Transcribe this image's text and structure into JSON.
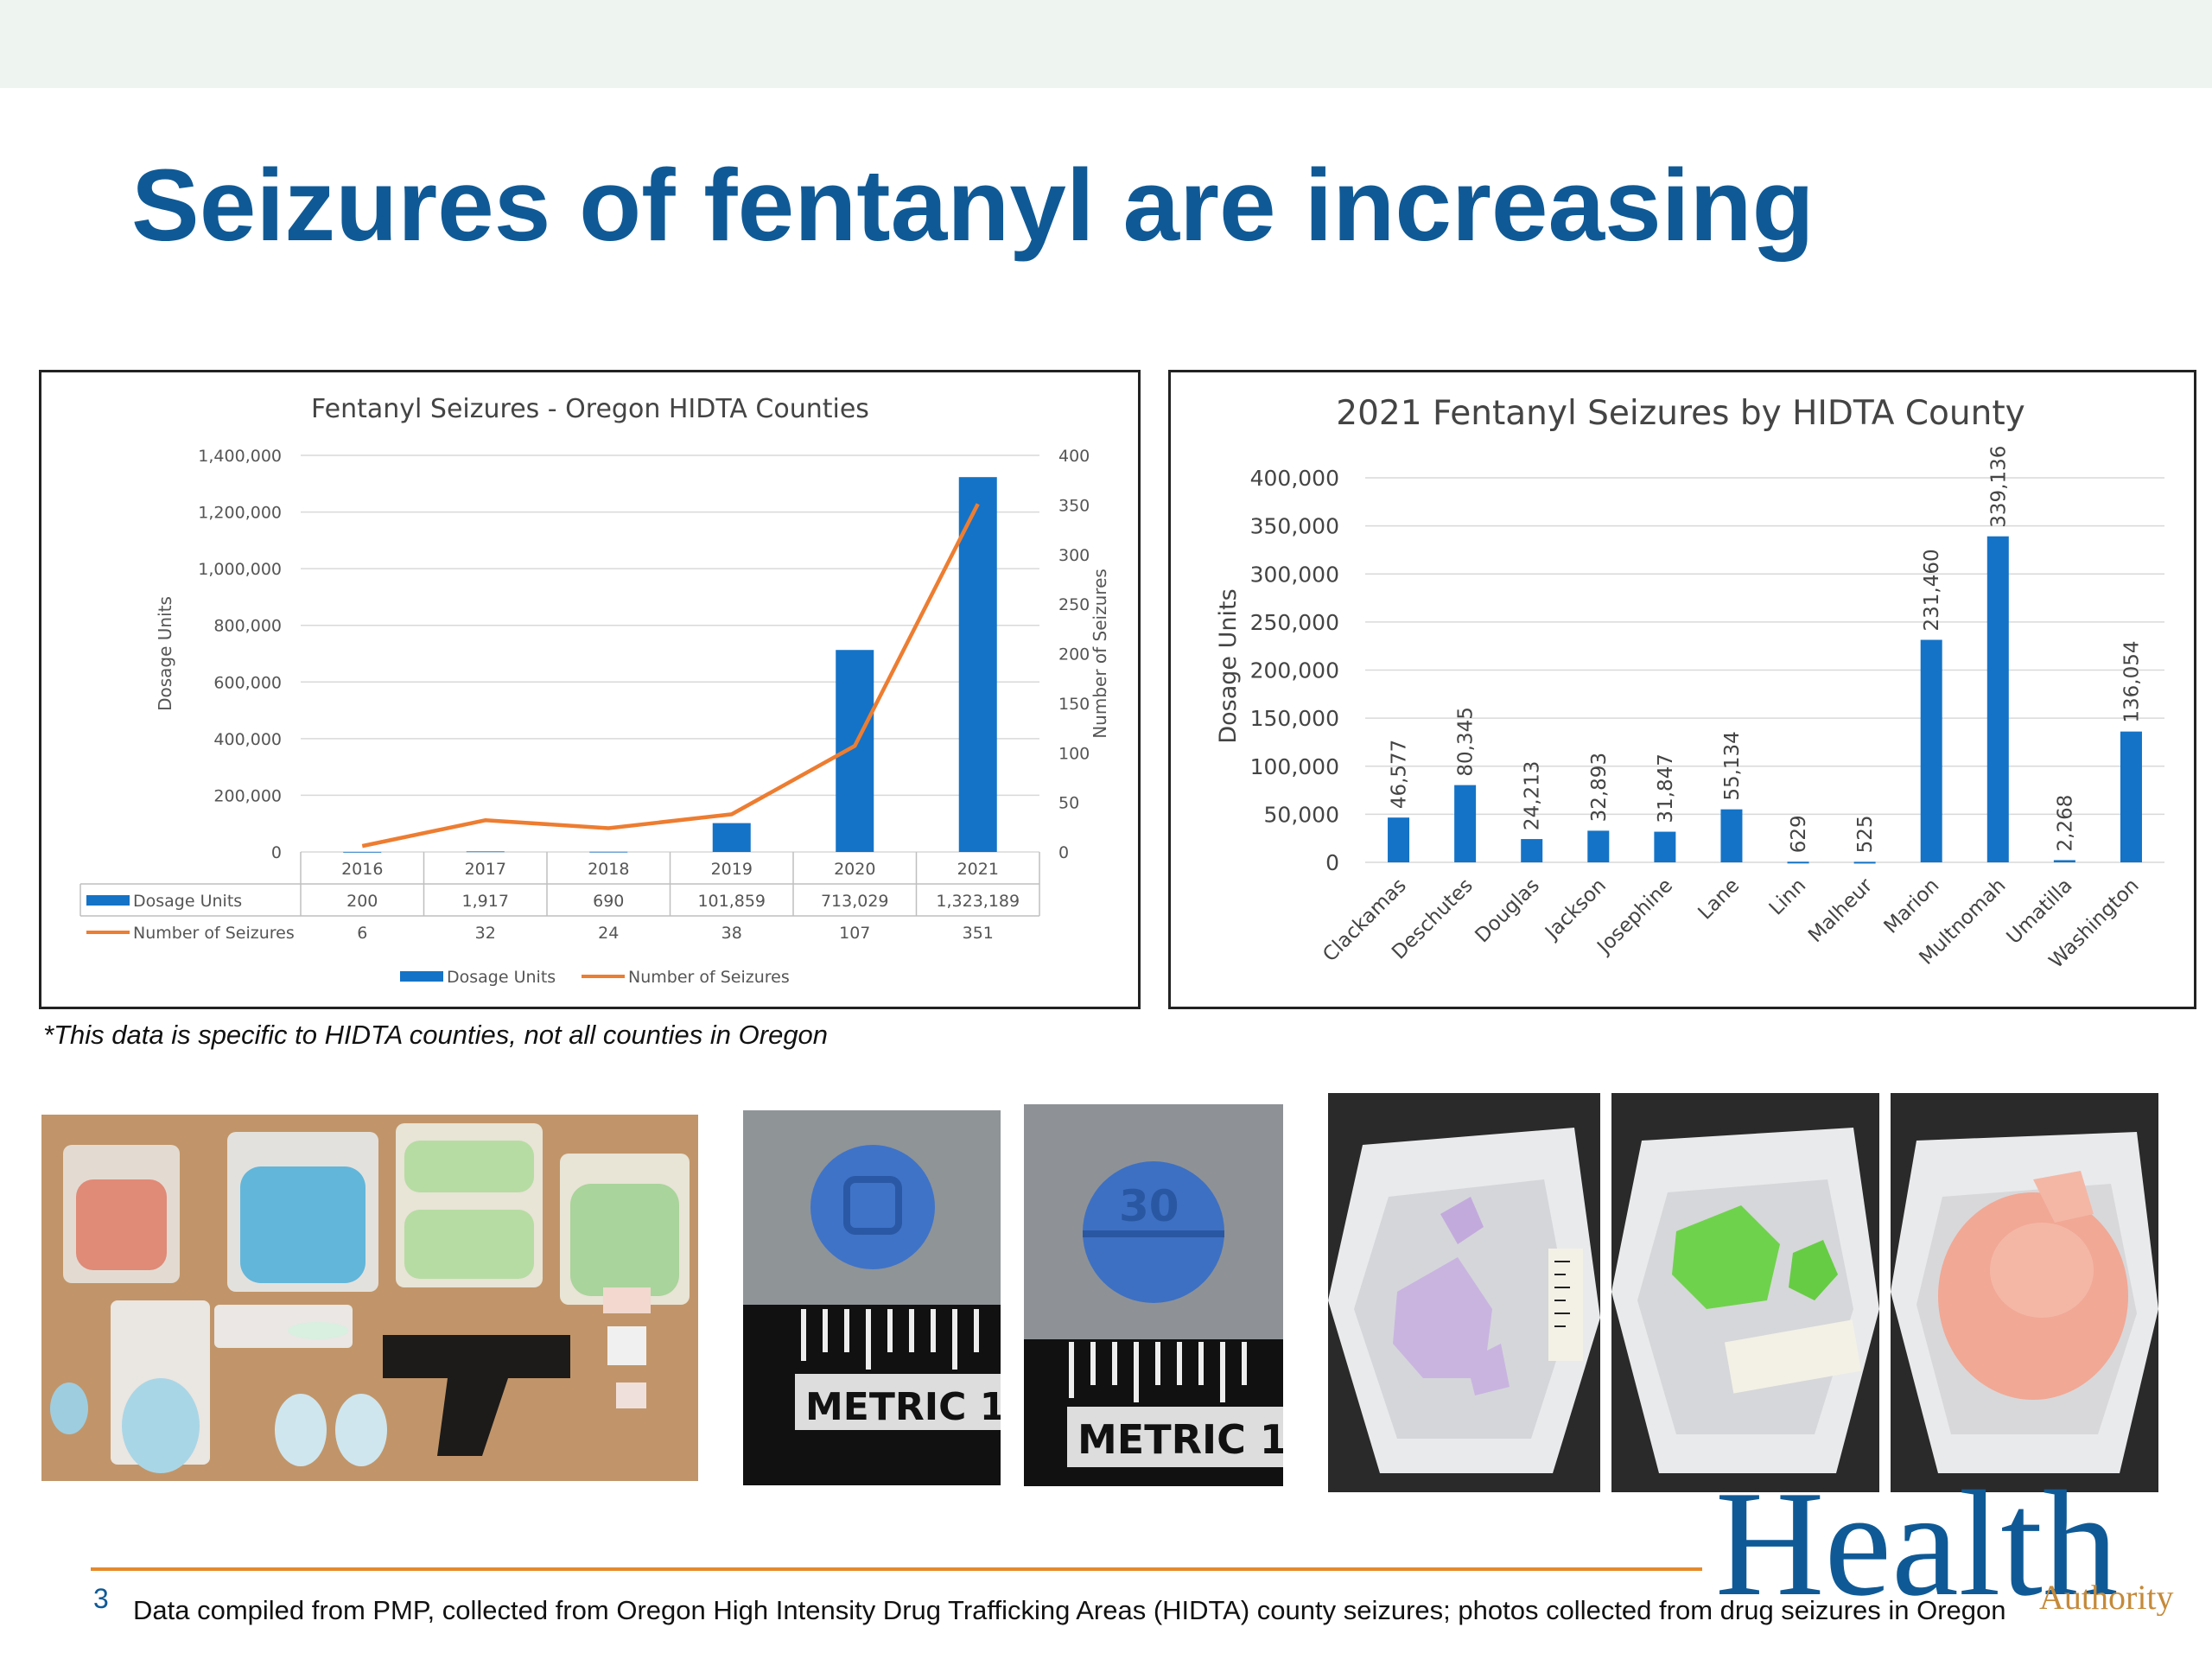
{
  "slide": {
    "title": "Seizures of fentanyl are increasing",
    "footnote": "*This data is specific to HIDTA counties, not all counties in Oregon",
    "page_number": "3",
    "source": "Data compiled from PMP, collected from Oregon High Intensity Drug Trafficking Areas (HIDTA) county seizures; photos collected from drug seizures in Oregon",
    "logo": {
      "main": "Health",
      "sub": "Authority",
      "color": "#0f5a96"
    },
    "accent": "#e58a2b"
  },
  "chart_data": [
    {
      "type": "bar+line",
      "title": "Fentanyl Seizures - Oregon HIDTA Counties",
      "categories": [
        "2016",
        "2017",
        "2018",
        "2019",
        "2020",
        "2021"
      ],
      "series": [
        {
          "name": "Dosage Units",
          "type": "bar",
          "axis": "left",
          "color": "#1473c6",
          "values": [
            200,
            1917,
            690,
            101859,
            713029,
            1323189
          ],
          "labels": [
            "200",
            "1,917",
            "690",
            "101,859",
            "713,029",
            "1,323,189"
          ]
        },
        {
          "name": "Number of Seizures",
          "type": "line",
          "axis": "right",
          "color": "#ed7d31",
          "values": [
            6,
            32,
            24,
            38,
            107,
            351
          ],
          "labels": [
            "6",
            "32",
            "24",
            "38",
            "107",
            "351"
          ]
        }
      ],
      "ylabel": "Dosage Units",
      "y2label": "Number of Seizures",
      "ylim": [
        0,
        1400000
      ],
      "y2lim": [
        0,
        400
      ],
      "yticks": [
        "0",
        "200,000",
        "400,000",
        "600,000",
        "800,000",
        "1,000,000",
        "1,200,000",
        "1,400,000"
      ],
      "y2ticks": [
        "0",
        "50",
        "100",
        "150",
        "200",
        "250",
        "300",
        "350",
        "400"
      ],
      "grid": true,
      "legend": "bottom",
      "data_table": true
    },
    {
      "type": "bar",
      "title": "2021 Fentanyl Seizures by HIDTA County",
      "categories": [
        "Clackamas",
        "Deschutes",
        "Douglas",
        "Jackson",
        "Josephine",
        "Lane",
        "Linn",
        "Malheur",
        "Marion",
        "Multnomah",
        "Umatilla",
        "Washington"
      ],
      "values": [
        46577,
        80345,
        24213,
        32893,
        31847,
        55134,
        629,
        525,
        231460,
        339136,
        2268,
        136054
      ],
      "value_labels": [
        "46,577",
        "80,345",
        "24,213",
        "32,893",
        "31,847",
        "55,134",
        "629",
        "525",
        "231,460",
        "339,136",
        "2,268",
        "136,054"
      ],
      "ylabel": "Dosage Units",
      "ylim": [
        0,
        400000
      ],
      "yticks": [
        "0",
        "50,000",
        "100,000",
        "150,000",
        "200,000",
        "250,000",
        "300,000",
        "350,000",
        "400,000"
      ],
      "color": "#1473c6",
      "grid": true
    }
  ]
}
